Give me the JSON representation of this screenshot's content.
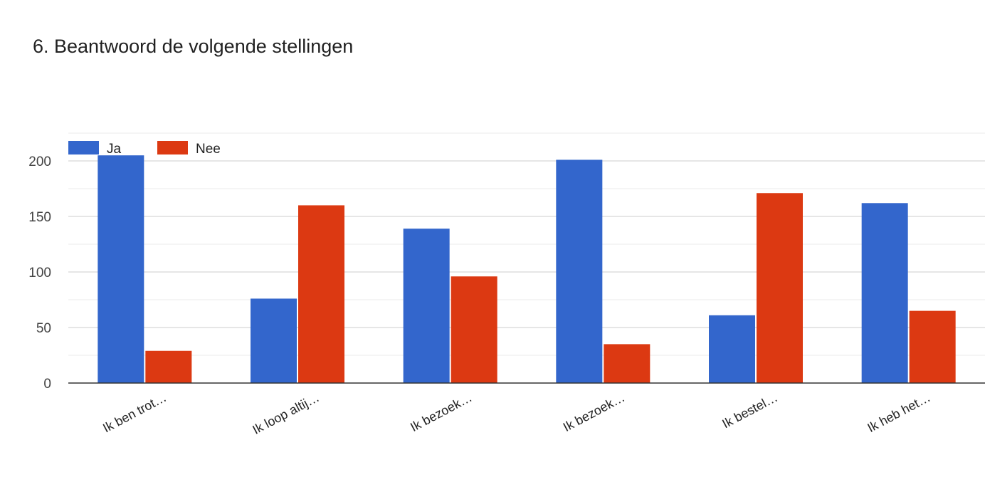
{
  "chart_data": {
    "type": "bar",
    "title": "6. Beantwoord de volgende stellingen",
    "xlabel": "",
    "ylabel": "",
    "categories": [
      "Ik ben trot…",
      "Ik loop altij…",
      "Ik bezoek…",
      "Ik bezoek…",
      "Ik bestel…",
      "Ik heb het…"
    ],
    "series": [
      {
        "name": "Ja",
        "color": "#3366cc",
        "values": [
          205,
          76,
          139,
          201,
          61,
          162
        ]
      },
      {
        "name": "Nee",
        "color": "#dc3912",
        "values": [
          29,
          160,
          96,
          35,
          171,
          65
        ]
      }
    ],
    "ylim": [
      0,
      225
    ],
    "yticks": [
      "0",
      "50",
      "100",
      "150",
      "200"
    ],
    "grid": true,
    "legend": "top-left"
  }
}
